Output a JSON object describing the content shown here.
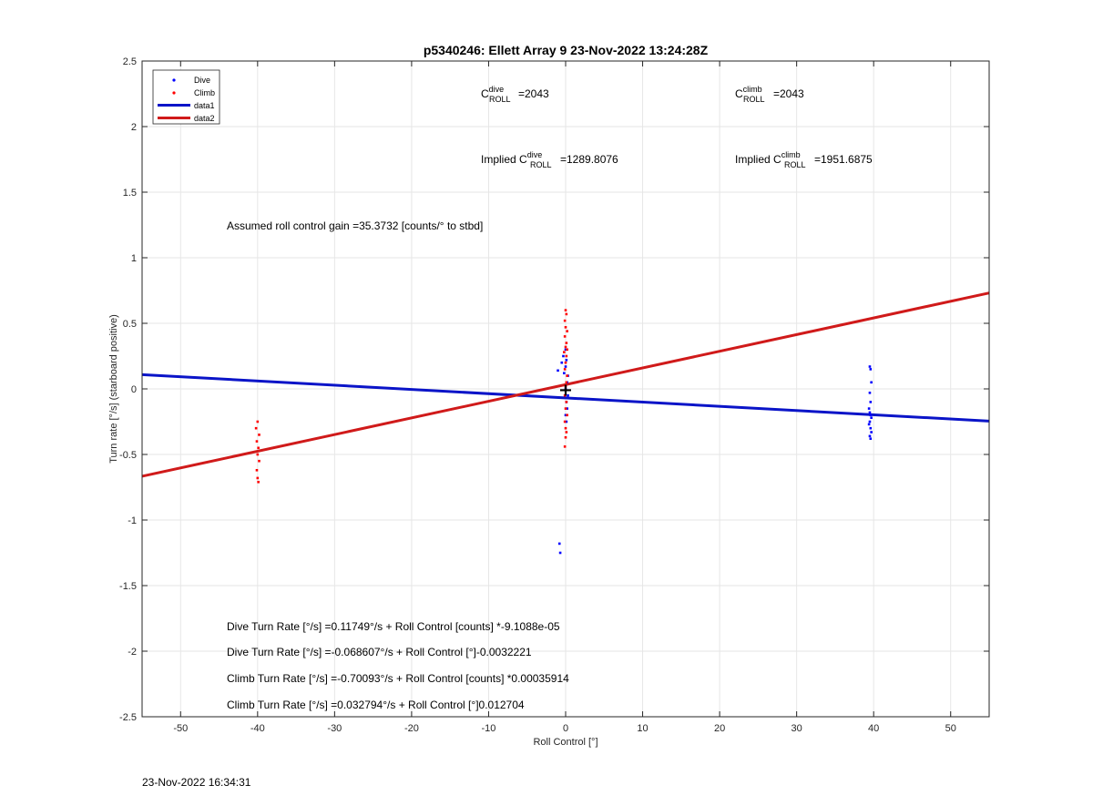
{
  "chart_data": {
    "type": "scatter",
    "title": "p5340246: Ellett Array 9 23-Nov-2022 13:24:28Z",
    "xlabel": "Roll Control [°]",
    "ylabel": "Turn rate [°/s] (starboard positive)",
    "xlim": [
      -55,
      55
    ],
    "ylim": [
      -2.5,
      2.5
    ],
    "xticks": [
      -50,
      -40,
      -30,
      -20,
      -10,
      0,
      10,
      20,
      30,
      40,
      50
    ],
    "yticks": [
      -2.5,
      -2,
      -1.5,
      -1,
      -0.5,
      0,
      0.5,
      1,
      1.5,
      2,
      2.5
    ],
    "xtick_labels": [
      "-50",
      "-40",
      "-30",
      "-20",
      "-10",
      "0",
      "10",
      "20",
      "30",
      "40",
      "50"
    ],
    "ytick_labels": [
      "-2.5",
      "-2",
      "-1.5",
      "-1",
      "-0.5",
      "0",
      "0.5",
      "1",
      "1.5",
      "2",
      "2.5"
    ],
    "grid": true,
    "legend_position": "top-left",
    "legend": [
      {
        "label": "Dive",
        "style": "marker",
        "color": "#0000ff"
      },
      {
        "label": "Climb",
        "style": "marker",
        "color": "#ff0000"
      },
      {
        "label": "data1",
        "style": "line",
        "color": "#0a14c8"
      },
      {
        "label": "data2",
        "style": "line",
        "color": "#d01a1a"
      }
    ],
    "series": [
      {
        "name": "Dive",
        "mode": "markers",
        "color": "#0000ff",
        "points": [
          [
            -1.0,
            0.14
          ],
          [
            -0.5,
            0.2
          ],
          [
            -0.3,
            0.25
          ],
          [
            0.0,
            0.3
          ],
          [
            0.1,
            0.22
          ],
          [
            -0.2,
            0.12
          ],
          [
            0.2,
            0.05
          ],
          [
            0.0,
            0.0
          ],
          [
            0.3,
            -0.05
          ],
          [
            0.1,
            -0.1
          ],
          [
            0.2,
            -0.15
          ],
          [
            0.0,
            -0.2
          ],
          [
            0.1,
            -0.25
          ],
          [
            0.3,
            0.1
          ],
          [
            0.0,
            0.17
          ],
          [
            -0.8,
            -1.18
          ],
          [
            -0.7,
            -1.25
          ],
          [
            39.5,
            0.17
          ],
          [
            39.6,
            0.15
          ],
          [
            39.7,
            0.05
          ],
          [
            39.5,
            -0.03
          ],
          [
            39.6,
            -0.1
          ],
          [
            39.4,
            -0.15
          ],
          [
            39.5,
            -0.18
          ],
          [
            39.6,
            -0.2
          ],
          [
            39.7,
            -0.22
          ],
          [
            39.5,
            -0.25
          ],
          [
            39.4,
            -0.27
          ],
          [
            39.6,
            -0.3
          ],
          [
            39.7,
            -0.33
          ],
          [
            39.5,
            -0.36
          ],
          [
            39.6,
            -0.38
          ]
        ]
      },
      {
        "name": "Climb",
        "mode": "markers",
        "color": "#ff0000",
        "points": [
          [
            -40.0,
            -0.25
          ],
          [
            -40.2,
            -0.3
          ],
          [
            -39.8,
            -0.35
          ],
          [
            -40.1,
            -0.4
          ],
          [
            -39.9,
            -0.45
          ],
          [
            -40.0,
            -0.5
          ],
          [
            -39.8,
            -0.55
          ],
          [
            -40.1,
            -0.62
          ],
          [
            -40.0,
            -0.68
          ],
          [
            -39.9,
            -0.71
          ],
          [
            0.0,
            0.6
          ],
          [
            0.1,
            0.57
          ],
          [
            -0.1,
            0.52
          ],
          [
            0.0,
            0.47
          ],
          [
            0.2,
            0.44
          ],
          [
            -0.1,
            0.4
          ],
          [
            0.1,
            0.35
          ],
          [
            0.0,
            0.32
          ],
          [
            0.2,
            0.3
          ],
          [
            -0.2,
            0.28
          ],
          [
            0.1,
            0.25
          ],
          [
            0.0,
            0.2
          ],
          [
            -0.1,
            0.15
          ],
          [
            0.2,
            0.1
          ],
          [
            0.1,
            0.05
          ],
          [
            0.0,
            0.02
          ],
          [
            -0.1,
            -0.05
          ],
          [
            0.1,
            -0.1
          ],
          [
            0.0,
            -0.15
          ],
          [
            0.2,
            -0.2
          ],
          [
            -0.1,
            -0.25
          ],
          [
            0.0,
            -0.3
          ],
          [
            0.1,
            -0.33
          ],
          [
            0.0,
            -0.37
          ],
          [
            -0.1,
            -0.44
          ]
        ]
      },
      {
        "name": "data1",
        "mode": "line",
        "color": "#0a14c8",
        "points": [
          [
            -55,
            0.1085
          ],
          [
            55,
            -0.2458
          ]
        ]
      },
      {
        "name": "data2",
        "mode": "line",
        "color": "#d01a1a",
        "points": [
          [
            -55,
            -0.666
          ],
          [
            55,
            0.7315
          ]
        ]
      }
    ],
    "marker": {
      "x": 0,
      "y": -0.01,
      "symbol": "+",
      "color": "#000000"
    },
    "annotations": {
      "c_dive_base": "C",
      "c_dive_sup": "dive",
      "c_dive_sub": "ROLL",
      "c_dive_value": "=2043",
      "c_climb_base": "C",
      "c_climb_sup": "climb",
      "c_climb_sub": "ROLL",
      "c_climb_value": "=2043",
      "implied_dive_prefix": "Implied C",
      "implied_dive_sup": "dive",
      "implied_dive_sub": "ROLL",
      "implied_dive_value": "=1289.8076",
      "implied_climb_prefix": "Implied C",
      "implied_climb_sup": "climb",
      "implied_climb_sub": "ROLL",
      "implied_climb_value": "=1951.6875",
      "gain": "Assumed roll control gain =35.3732 [counts/° to stbd]",
      "eq_dive_counts": "Dive Turn Rate [°/s] =0.11749°/s + Roll Control [counts] *-9.1088e-05",
      "eq_dive_deg": "Dive Turn Rate [°/s] =-0.068607°/s + Roll Control [°]-0.0032221",
      "eq_climb_counts": "Climb Turn Rate [°/s] =-0.70093°/s + Roll Control [counts] *0.00035914",
      "eq_climb_deg": "Climb Turn Rate [°/s] =0.032794°/s + Roll Control [°]0.012704"
    }
  },
  "footer": {
    "timestamp": "23-Nov-2022 16:34:31"
  }
}
